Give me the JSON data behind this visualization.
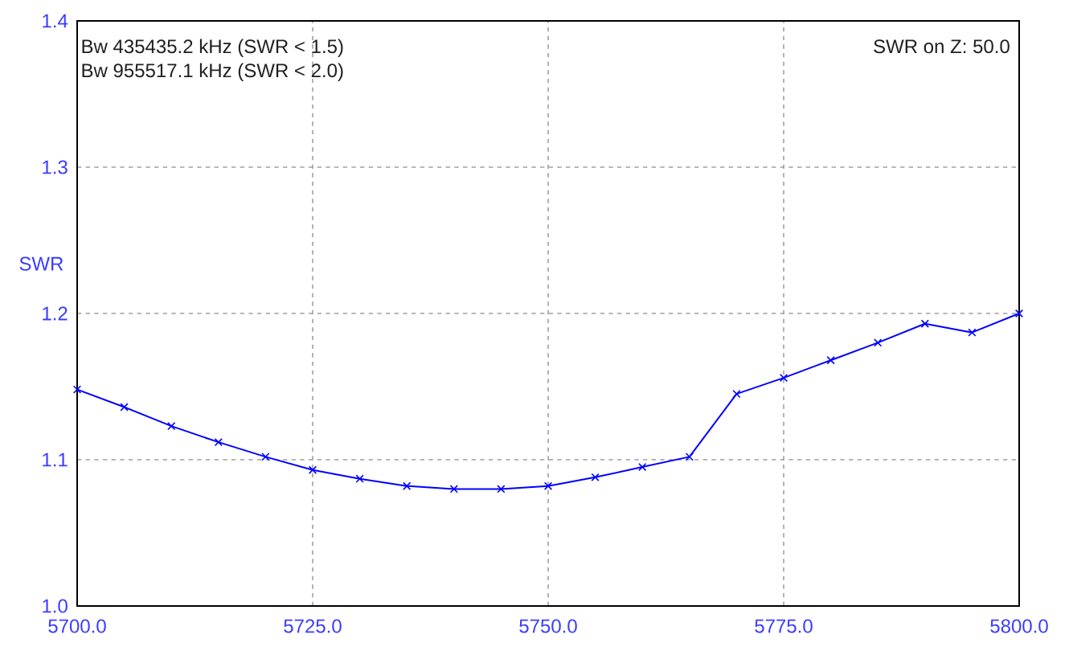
{
  "chart_data": {
    "type": "line",
    "ylabel": "SWR",
    "annotations": [
      "Bw 435435.2 kHz (SWR < 1.5)",
      "Bw 955517.1 kHz (SWR < 2.0)",
      "SWR on Z: 50.0"
    ],
    "x": [
      5700,
      5705,
      5710,
      5715,
      5720,
      5725,
      5730,
      5735,
      5740,
      5745,
      5750,
      5755,
      5760,
      5765,
      5770,
      5775,
      5780,
      5785,
      5790,
      5795,
      5800
    ],
    "values": [
      1.148,
      1.136,
      1.123,
      1.112,
      1.102,
      1.093,
      1.087,
      1.082,
      1.08,
      1.08,
      1.082,
      1.088,
      1.095,
      1.102,
      1.145,
      1.156,
      1.168,
      1.18,
      1.193,
      1.187,
      1.2
    ],
    "color": "#0000ff",
    "marker": "cross",
    "line_style": "solid",
    "grid": true,
    "xlim": [
      5700,
      5800
    ],
    "ylim": [
      1.0,
      1.4
    ],
    "xticks": [
      {
        "value": 5700,
        "label": "5700.0"
      },
      {
        "value": 5725,
        "label": "5725.0"
      },
      {
        "value": 5750,
        "label": "5750.0"
      },
      {
        "value": 5775,
        "label": "5775.0"
      },
      {
        "value": 5800,
        "label": "5800.0"
      }
    ],
    "yticks": [
      {
        "value": 1.0,
        "label": "1.0"
      },
      1.1,
      1.2,
      1.3,
      1.4
    ]
  }
}
